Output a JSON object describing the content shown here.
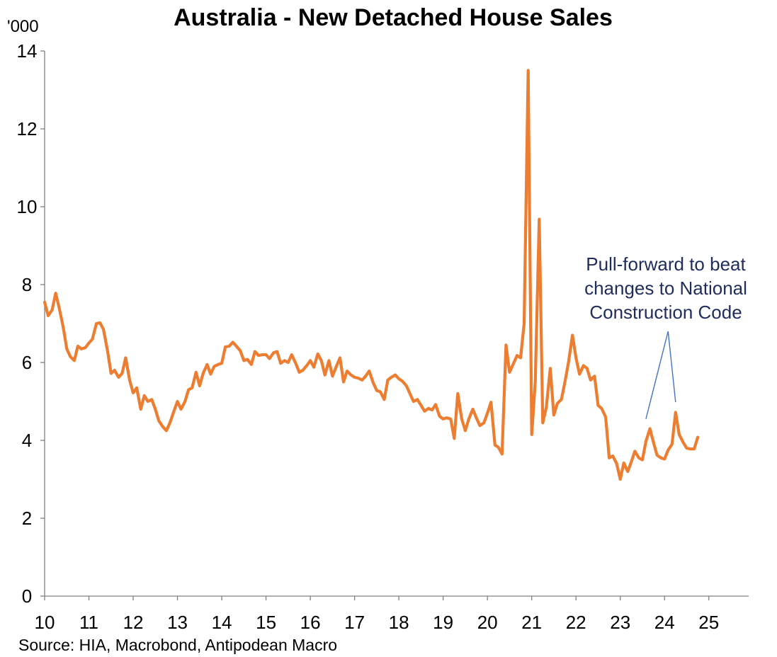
{
  "chart_data": {
    "type": "line",
    "title": "Australia - New Detached House Sales",
    "ylabel": "'000",
    "xlabel": "",
    "ylim": [
      0,
      14
    ],
    "yticks": [
      0,
      2,
      4,
      6,
      8,
      10,
      12,
      14
    ],
    "xlim": [
      10,
      25.9
    ],
    "xticks": [
      10,
      11,
      12,
      13,
      14,
      15,
      16,
      17,
      18,
      19,
      20,
      21,
      22,
      23,
      24,
      25
    ],
    "xtick_labels": [
      "10",
      "11",
      "12",
      "13",
      "14",
      "15",
      "16",
      "17",
      "18",
      "19",
      "20",
      "21",
      "22",
      "23",
      "24",
      "25"
    ],
    "grid": false,
    "line_color": "#ED7D31",
    "series": [
      {
        "name": "New Detached House Sales",
        "points": [
          [
            10.0,
            7.55
          ],
          [
            10.08,
            7.2
          ],
          [
            10.17,
            7.35
          ],
          [
            10.25,
            7.78
          ],
          [
            10.33,
            7.4
          ],
          [
            10.42,
            6.9
          ],
          [
            10.5,
            6.35
          ],
          [
            10.58,
            6.15
          ],
          [
            10.67,
            6.05
          ],
          [
            10.75,
            6.42
          ],
          [
            10.83,
            6.35
          ],
          [
            10.92,
            6.38
          ],
          [
            11.0,
            6.5
          ],
          [
            11.08,
            6.6
          ],
          [
            11.17,
            7.0
          ],
          [
            11.25,
            7.02
          ],
          [
            11.33,
            6.85
          ],
          [
            11.42,
            6.3
          ],
          [
            11.5,
            5.72
          ],
          [
            11.58,
            5.8
          ],
          [
            11.67,
            5.62
          ],
          [
            11.75,
            5.72
          ],
          [
            11.83,
            6.12
          ],
          [
            11.92,
            5.55
          ],
          [
            12.0,
            5.22
          ],
          [
            12.08,
            5.35
          ],
          [
            12.17,
            4.8
          ],
          [
            12.25,
            5.15
          ],
          [
            12.33,
            5.0
          ],
          [
            12.42,
            5.05
          ],
          [
            12.5,
            4.8
          ],
          [
            12.58,
            4.5
          ],
          [
            12.67,
            4.35
          ],
          [
            12.75,
            4.25
          ],
          [
            12.83,
            4.45
          ],
          [
            12.92,
            4.75
          ],
          [
            13.0,
            5.0
          ],
          [
            13.08,
            4.8
          ],
          [
            13.17,
            5.0
          ],
          [
            13.25,
            5.3
          ],
          [
            13.33,
            5.35
          ],
          [
            13.42,
            5.75
          ],
          [
            13.5,
            5.4
          ],
          [
            13.58,
            5.72
          ],
          [
            13.67,
            5.95
          ],
          [
            13.75,
            5.7
          ],
          [
            13.83,
            5.9
          ],
          [
            13.92,
            5.95
          ],
          [
            14.0,
            5.98
          ],
          [
            14.08,
            6.4
          ],
          [
            14.17,
            6.42
          ],
          [
            14.25,
            6.52
          ],
          [
            14.33,
            6.42
          ],
          [
            14.42,
            6.3
          ],
          [
            14.5,
            6.05
          ],
          [
            14.58,
            6.08
          ],
          [
            14.67,
            5.95
          ],
          [
            14.75,
            6.28
          ],
          [
            14.83,
            6.18
          ],
          [
            14.92,
            6.2
          ],
          [
            15.0,
            6.2
          ],
          [
            15.08,
            6.1
          ],
          [
            15.17,
            6.25
          ],
          [
            15.25,
            6.28
          ],
          [
            15.33,
            5.98
          ],
          [
            15.42,
            6.05
          ],
          [
            15.5,
            6.0
          ],
          [
            15.58,
            6.2
          ],
          [
            15.67,
            5.98
          ],
          [
            15.75,
            5.75
          ],
          [
            15.83,
            5.8
          ],
          [
            15.92,
            5.92
          ],
          [
            16.0,
            6.05
          ],
          [
            16.08,
            5.88
          ],
          [
            16.17,
            6.22
          ],
          [
            16.25,
            6.05
          ],
          [
            16.33,
            5.68
          ],
          [
            16.42,
            6.05
          ],
          [
            16.5,
            5.65
          ],
          [
            16.58,
            5.88
          ],
          [
            16.67,
            6.12
          ],
          [
            16.75,
            5.5
          ],
          [
            16.83,
            5.78
          ],
          [
            16.92,
            5.68
          ],
          [
            17.0,
            5.62
          ],
          [
            17.08,
            5.6
          ],
          [
            17.17,
            5.55
          ],
          [
            17.25,
            5.65
          ],
          [
            17.33,
            5.78
          ],
          [
            17.42,
            5.48
          ],
          [
            17.5,
            5.28
          ],
          [
            17.58,
            5.25
          ],
          [
            17.67,
            5.05
          ],
          [
            17.75,
            5.55
          ],
          [
            17.83,
            5.62
          ],
          [
            17.92,
            5.68
          ],
          [
            18.0,
            5.58
          ],
          [
            18.08,
            5.52
          ],
          [
            18.17,
            5.4
          ],
          [
            18.25,
            5.2
          ],
          [
            18.33,
            5.0
          ],
          [
            18.42,
            5.05
          ],
          [
            18.5,
            4.9
          ],
          [
            18.58,
            4.75
          ],
          [
            18.67,
            4.82
          ],
          [
            18.75,
            4.78
          ],
          [
            18.83,
            4.92
          ],
          [
            18.92,
            4.62
          ],
          [
            19.0,
            4.55
          ],
          [
            19.08,
            4.58
          ],
          [
            19.17,
            4.55
          ],
          [
            19.25,
            4.05
          ],
          [
            19.33,
            5.2
          ],
          [
            19.42,
            4.55
          ],
          [
            19.5,
            4.25
          ],
          [
            19.58,
            4.55
          ],
          [
            19.67,
            4.8
          ],
          [
            19.75,
            4.58
          ],
          [
            19.83,
            4.38
          ],
          [
            19.92,
            4.45
          ],
          [
            20.0,
            4.7
          ],
          [
            20.08,
            4.98
          ],
          [
            20.17,
            3.88
          ],
          [
            20.25,
            3.82
          ],
          [
            20.33,
            3.65
          ],
          [
            20.42,
            6.45
          ],
          [
            20.5,
            5.75
          ],
          [
            20.58,
            5.95
          ],
          [
            20.67,
            6.18
          ],
          [
            20.75,
            6.12
          ],
          [
            20.83,
            7.0
          ],
          [
            20.92,
            13.5
          ],
          [
            21.0,
            4.15
          ],
          [
            21.08,
            5.5
          ],
          [
            21.17,
            9.68
          ],
          [
            21.25,
            4.45
          ],
          [
            21.33,
            4.85
          ],
          [
            21.42,
            5.85
          ],
          [
            21.5,
            4.65
          ],
          [
            21.58,
            4.95
          ],
          [
            21.67,
            5.05
          ],
          [
            21.75,
            5.5
          ],
          [
            21.83,
            6.0
          ],
          [
            21.92,
            6.7
          ],
          [
            22.0,
            6.12
          ],
          [
            22.08,
            5.7
          ],
          [
            22.17,
            5.92
          ],
          [
            22.25,
            5.85
          ],
          [
            22.33,
            5.55
          ],
          [
            22.42,
            5.65
          ],
          [
            22.5,
            4.9
          ],
          [
            22.58,
            4.82
          ],
          [
            22.67,
            4.6
          ],
          [
            22.75,
            3.55
          ],
          [
            22.83,
            3.6
          ],
          [
            22.92,
            3.4
          ],
          [
            23.0,
            3.0
          ],
          [
            23.08,
            3.42
          ],
          [
            23.17,
            3.2
          ],
          [
            23.25,
            3.45
          ],
          [
            23.33,
            3.72
          ],
          [
            23.42,
            3.55
          ],
          [
            23.5,
            3.5
          ],
          [
            23.58,
            3.98
          ],
          [
            23.67,
            4.3
          ],
          [
            23.75,
            3.95
          ],
          [
            23.83,
            3.62
          ],
          [
            23.92,
            3.55
          ],
          [
            24.0,
            3.52
          ],
          [
            24.08,
            3.75
          ],
          [
            24.17,
            3.9
          ],
          [
            24.25,
            4.72
          ],
          [
            24.33,
            4.15
          ],
          [
            24.42,
            3.95
          ],
          [
            24.5,
            3.8
          ],
          [
            24.58,
            3.78
          ],
          [
            24.67,
            3.78
          ],
          [
            24.75,
            4.08
          ]
        ]
      }
    ],
    "annotation": {
      "lines": [
        "Pull-forward to beat",
        "changes to National",
        "Construction Code"
      ],
      "color": "#1f2d5c",
      "arrow_color": "#4472C4",
      "arrow_apex": [
        24.08,
        6.8
      ],
      "arrow_targets": [
        [
          23.58,
          4.55
        ],
        [
          24.25,
          4.98
        ]
      ]
    },
    "source": "Source: HIA, Macrobond, Antipodean Macro"
  }
}
